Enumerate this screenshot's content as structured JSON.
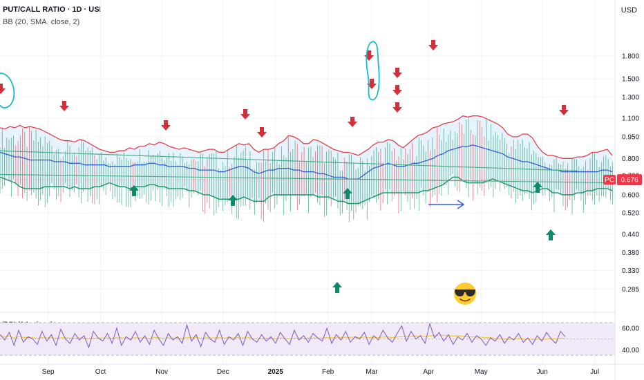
{
  "header": {
    "title": "PUT/CALL RATIO · 1D · USI",
    "indicator": "BB (20, SMA, close, 2)",
    "currency": "USD"
  },
  "rsi_label": "RSI (14, close)",
  "price_tag": {
    "symbol": "PC",
    "value": "0.676"
  },
  "colors": {
    "upper_band": "#e0404a",
    "lower_band": "#1e9a6e",
    "basis": "#2f5fd8",
    "band_fill": "#e3f1fb",
    "rsi_line": "#7e57c2",
    "rsi_ma": "#f5c842",
    "rsi_fill": "#efe9f8",
    "arrow_down": "#d32f3a",
    "arrow_up": "#0d8a6a",
    "annot": "#19bccc",
    "price_tag": "#f23645"
  },
  "annotation_icons": [
    "arrow-down-icon",
    "arrow-up-icon",
    "loop-circle-icon",
    "right-arrow-icon",
    "sunglasses-emoji-icon"
  ],
  "chart_data": {
    "type": "line",
    "y_scale": "log",
    "ylim": [
      0.245,
      2.25
    ],
    "x_ticks": [
      "Sep",
      "Oct",
      "Nov",
      "Dec",
      "2025",
      "Feb",
      "Mar",
      "Apr",
      "May",
      "Jun",
      "Jul"
    ],
    "y_ticks": [
      "1.800",
      "1.500",
      "1.300",
      "1.100",
      "0.950",
      "0.800",
      "0.700",
      "0.600",
      "0.520",
      "0.440",
      "0.380",
      "0.330",
      "0.285"
    ],
    "last_value": 0.676,
    "bb_upper": [
      1.02,
      1.01,
      1.03,
      1.02,
      1.04,
      1.02,
      1.03,
      1.02,
      1.01,
      0.99,
      0.97,
      0.95,
      0.93,
      0.92,
      0.92,
      0.91,
      0.93,
      0.92,
      0.9,
      0.88,
      0.86,
      0.85,
      0.84,
      0.84,
      0.85,
      0.85,
      0.87,
      0.86,
      0.88,
      0.88,
      0.9,
      0.89,
      0.91,
      0.9,
      0.88,
      0.87,
      0.86,
      0.87,
      0.86,
      0.85,
      0.84,
      0.85,
      0.86,
      0.86,
      0.84,
      0.84,
      0.86,
      0.88,
      0.9,
      0.89,
      0.9,
      0.86,
      0.84,
      0.86,
      0.86,
      0.87,
      0.9,
      0.92,
      0.96,
      0.95,
      0.93,
      0.9,
      0.9,
      0.93,
      0.92,
      0.9,
      0.88,
      0.86,
      0.85,
      0.84,
      0.84,
      0.83,
      0.82,
      0.84,
      0.86,
      0.89,
      0.91,
      0.91,
      0.93,
      0.92,
      0.89,
      0.87,
      0.9,
      0.93,
      0.96,
      0.97,
      0.99,
      1.02,
      1.03,
      1.05,
      1.06,
      1.07,
      1.09,
      1.12,
      1.11,
      1.12,
      1.12,
      1.11,
      1.09,
      1.07,
      1.05,
      1.02,
      0.97,
      0.95,
      0.95,
      0.97,
      0.97,
      0.94,
      0.88,
      0.84,
      0.82,
      0.82,
      0.81,
      0.8,
      0.8,
      0.8,
      0.81,
      0.81,
      0.82,
      0.84,
      0.84,
      0.85,
      0.86,
      0.82
    ],
    "bb_basis": [
      0.84,
      0.83,
      0.82,
      0.81,
      0.81,
      0.8,
      0.79,
      0.79,
      0.79,
      0.79,
      0.79,
      0.78,
      0.78,
      0.78,
      0.77,
      0.77,
      0.77,
      0.76,
      0.76,
      0.76,
      0.76,
      0.76,
      0.75,
      0.75,
      0.75,
      0.75,
      0.75,
      0.76,
      0.76,
      0.76,
      0.77,
      0.77,
      0.76,
      0.76,
      0.75,
      0.75,
      0.75,
      0.75,
      0.74,
      0.74,
      0.73,
      0.73,
      0.73,
      0.73,
      0.72,
      0.72,
      0.73,
      0.74,
      0.75,
      0.75,
      0.74,
      0.72,
      0.71,
      0.72,
      0.73,
      0.73,
      0.74,
      0.74,
      0.74,
      0.73,
      0.73,
      0.72,
      0.72,
      0.72,
      0.71,
      0.71,
      0.7,
      0.69,
      0.69,
      0.69,
      0.68,
      0.68,
      0.68,
      0.7,
      0.72,
      0.74,
      0.75,
      0.76,
      0.77,
      0.76,
      0.75,
      0.75,
      0.76,
      0.77,
      0.77,
      0.78,
      0.79,
      0.8,
      0.82,
      0.83,
      0.85,
      0.86,
      0.87,
      0.88,
      0.88,
      0.89,
      0.88,
      0.87,
      0.86,
      0.85,
      0.84,
      0.83,
      0.81,
      0.8,
      0.79,
      0.78,
      0.78,
      0.77,
      0.76,
      0.75,
      0.74,
      0.73,
      0.73,
      0.72,
      0.72,
      0.72,
      0.72,
      0.72,
      0.72,
      0.72,
      0.72,
      0.73,
      0.73,
      0.72
    ],
    "bb_lower": [
      0.69,
      0.68,
      0.67,
      0.66,
      0.64,
      0.63,
      0.63,
      0.63,
      0.63,
      0.64,
      0.64,
      0.64,
      0.64,
      0.64,
      0.63,
      0.64,
      0.63,
      0.63,
      0.63,
      0.64,
      0.64,
      0.65,
      0.66,
      0.65,
      0.64,
      0.64,
      0.63,
      0.64,
      0.64,
      0.64,
      0.65,
      0.65,
      0.64,
      0.64,
      0.63,
      0.63,
      0.63,
      0.63,
      0.62,
      0.62,
      0.61,
      0.6,
      0.6,
      0.59,
      0.58,
      0.58,
      0.58,
      0.58,
      0.58,
      0.59,
      0.58,
      0.57,
      0.57,
      0.57,
      0.59,
      0.6,
      0.6,
      0.6,
      0.6,
      0.6,
      0.6,
      0.6,
      0.6,
      0.6,
      0.59,
      0.59,
      0.59,
      0.58,
      0.57,
      0.57,
      0.56,
      0.56,
      0.56,
      0.57,
      0.58,
      0.59,
      0.6,
      0.61,
      0.61,
      0.61,
      0.61,
      0.61,
      0.61,
      0.61,
      0.61,
      0.62,
      0.62,
      0.63,
      0.64,
      0.65,
      0.67,
      0.69,
      0.69,
      0.67,
      0.66,
      0.66,
      0.66,
      0.66,
      0.67,
      0.68,
      0.67,
      0.66,
      0.65,
      0.64,
      0.63,
      0.62,
      0.62,
      0.61,
      0.62,
      0.63,
      0.63,
      0.61,
      0.61,
      0.6,
      0.6,
      0.6,
      0.61,
      0.61,
      0.62,
      0.62,
      0.63,
      0.63,
      0.63,
      0.62
    ],
    "rsi": {
      "ylim": [
        30,
        72
      ],
      "ticks": [
        "60.00",
        "40.00"
      ],
      "bands": [
        35,
        65
      ],
      "values": [
        54,
        49,
        56,
        44,
        58,
        47,
        52,
        50,
        45,
        57,
        48,
        54,
        44,
        59,
        50,
        46,
        55,
        49,
        53,
        42,
        57,
        51,
        48,
        55,
        46,
        60,
        44,
        52,
        49,
        57,
        47,
        53,
        45,
        58,
        50,
        44,
        55,
        49,
        52,
        46,
        63,
        48,
        54,
        43,
        56,
        50,
        47,
        58,
        45,
        52,
        49,
        55,
        44,
        57,
        50,
        47,
        54,
        48,
        52,
        46,
        56,
        50,
        45,
        58,
        49,
        53,
        47,
        55,
        51,
        48,
        60,
        46,
        54,
        49,
        57,
        47,
        52,
        50,
        56,
        45,
        53,
        49,
        58,
        51,
        47,
        55,
        62,
        48,
        57,
        50,
        53,
        46,
        64,
        51,
        56,
        48,
        54,
        45,
        52,
        49,
        55,
        47,
        53,
        50,
        44,
        51,
        48,
        54,
        46,
        52,
        49,
        55,
        47,
        51,
        45,
        53,
        48,
        56,
        50,
        46,
        57,
        52
      ]
    }
  }
}
